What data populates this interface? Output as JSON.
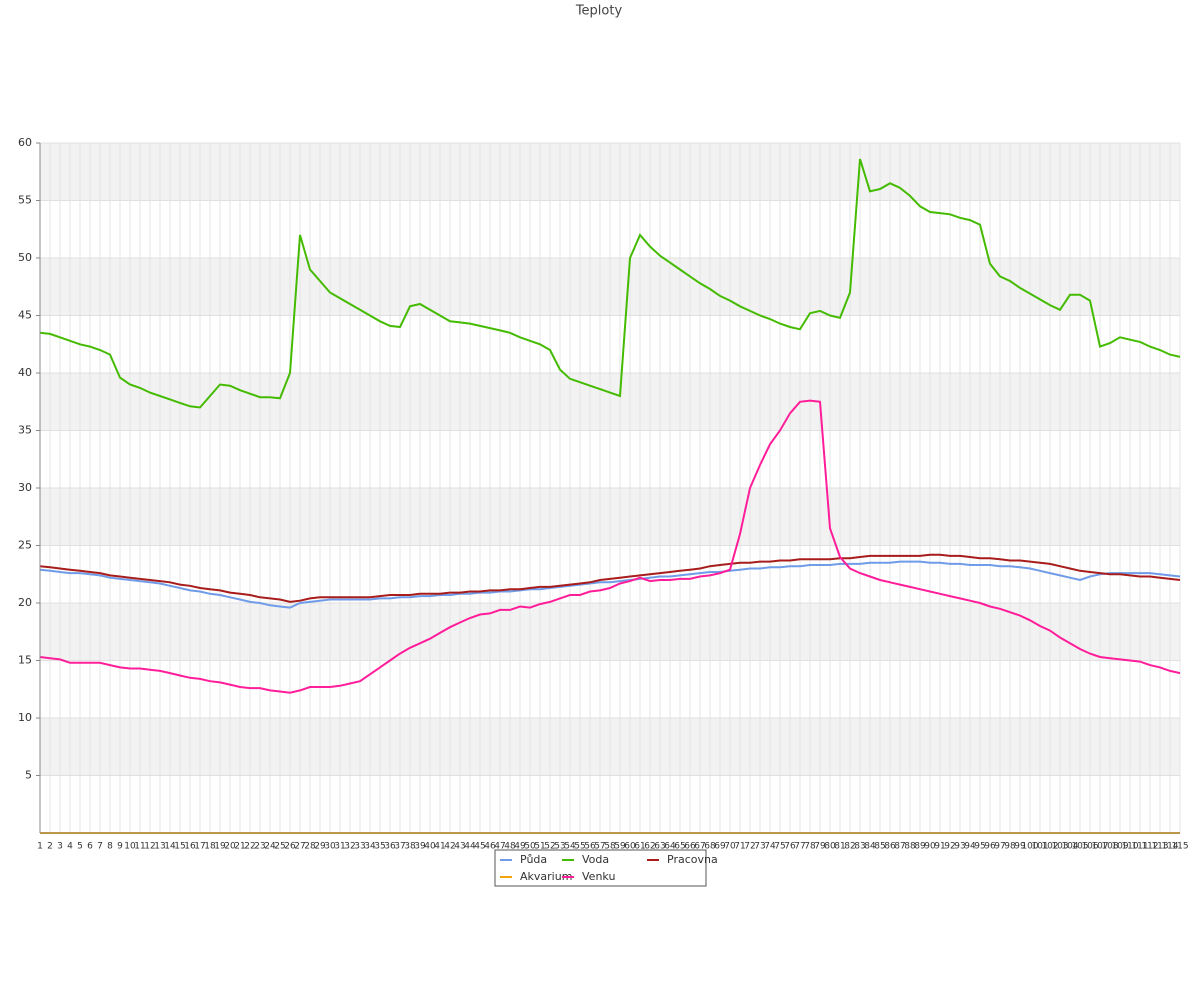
{
  "chart_data": {
    "type": "line",
    "title": "Teploty",
    "categories": [
      "1",
      "2",
      "3",
      "4",
      "5",
      "6",
      "7",
      "8",
      "9",
      "10",
      "11",
      "12",
      "13",
      "14",
      "15",
      "16",
      "17",
      "18",
      "19",
      "20",
      "21",
      "22",
      "23",
      "24",
      "25",
      "26",
      "27",
      "28",
      "29",
      "30",
      "31",
      "32",
      "33",
      "34",
      "35",
      "36",
      "37",
      "38",
      "39",
      "40",
      "41",
      "42",
      "43",
      "44",
      "45",
      "46",
      "47",
      "48",
      "49",
      "50",
      "51",
      "52",
      "53",
      "54",
      "55",
      "56",
      "57",
      "58",
      "59",
      "60",
      "61",
      "62",
      "63",
      "64",
      "65",
      "66",
      "67",
      "68",
      "69",
      "70",
      "71",
      "72",
      "73",
      "74",
      "75",
      "76",
      "77",
      "78",
      "79",
      "80",
      "81",
      "82",
      "83",
      "84",
      "85",
      "86",
      "87",
      "88",
      "89",
      "90",
      "91",
      "92",
      "93",
      "94",
      "95",
      "96",
      "97",
      "98",
      "99",
      "100",
      "101",
      "102",
      "103",
      "104",
      "105",
      "106",
      "107",
      "108",
      "109",
      "110",
      "111",
      "112",
      "113",
      "114",
      "115"
    ],
    "ylim": [
      0,
      60
    ],
    "yticks": [
      5,
      10,
      15,
      20,
      25,
      30,
      35,
      40,
      45,
      50,
      55,
      60
    ],
    "grid": true,
    "series": [
      {
        "name": "Půda",
        "color": "#6f9be8",
        "values": [
          22.9,
          22.8,
          22.7,
          22.6,
          22.6,
          22.5,
          22.4,
          22.2,
          22.1,
          22.0,
          21.9,
          21.8,
          21.7,
          21.5,
          21.3,
          21.1,
          21.0,
          20.8,
          20.7,
          20.5,
          20.3,
          20.1,
          20.0,
          19.8,
          19.7,
          19.6,
          20.0,
          20.1,
          20.2,
          20.3,
          20.3,
          20.3,
          20.3,
          20.3,
          20.4,
          20.4,
          20.5,
          20.5,
          20.6,
          20.6,
          20.7,
          20.7,
          20.8,
          20.8,
          20.9,
          20.9,
          21.0,
          21.0,
          21.1,
          21.2,
          21.2,
          21.3,
          21.4,
          21.5,
          21.6,
          21.7,
          21.8,
          21.8,
          21.9,
          22.0,
          22.1,
          22.2,
          22.3,
          22.3,
          22.4,
          22.5,
          22.6,
          22.7,
          22.7,
          22.8,
          22.9,
          23.0,
          23.0,
          23.1,
          23.1,
          23.2,
          23.2,
          23.3,
          23.3,
          23.3,
          23.4,
          23.4,
          23.4,
          23.5,
          23.5,
          23.5,
          23.6,
          23.6,
          23.6,
          23.5,
          23.5,
          23.4,
          23.4,
          23.3,
          23.3,
          23.3,
          23.2,
          23.2,
          23.1,
          23.0,
          22.8,
          22.6,
          22.4,
          22.2,
          22.0,
          22.3,
          22.5,
          22.6,
          22.6,
          22.6,
          22.6,
          22.6,
          22.5,
          22.4,
          22.3
        ]
      },
      {
        "name": "Voda",
        "color": "#44bb00",
        "values": [
          43.5,
          43.4,
          43.1,
          42.8,
          42.5,
          42.3,
          42.0,
          41.6,
          39.6,
          39.0,
          38.7,
          38.3,
          38.0,
          37.7,
          37.4,
          37.1,
          37.0,
          38.0,
          39.0,
          38.9,
          38.5,
          38.2,
          37.9,
          37.9,
          37.8,
          40.0,
          52.0,
          49.0,
          48.0,
          47.0,
          46.5,
          46.0,
          45.5,
          45.0,
          44.5,
          44.1,
          44.0,
          45.8,
          46.0,
          45.5,
          45.0,
          44.5,
          44.4,
          44.3,
          44.1,
          43.9,
          43.7,
          43.5,
          43.1,
          42.8,
          42.5,
          42.0,
          40.3,
          39.5,
          39.2,
          38.9,
          38.6,
          38.3,
          38.0,
          50.0,
          52.0,
          51.0,
          50.2,
          49.6,
          49.0,
          48.4,
          47.8,
          47.3,
          46.7,
          46.3,
          45.8,
          45.4,
          45.0,
          44.7,
          44.3,
          44.0,
          43.8,
          45.2,
          45.4,
          45.0,
          44.8,
          47.0,
          58.6,
          55.8,
          56.0,
          56.5,
          56.1,
          55.4,
          54.5,
          54.0,
          53.9,
          53.8,
          53.5,
          53.3,
          52.9,
          49.5,
          48.4,
          48.0,
          47.4,
          46.9,
          46.4,
          45.9,
          45.5,
          46.8,
          46.8,
          46.3,
          42.3,
          42.6,
          43.1,
          42.9,
          42.7,
          42.3,
          42.0,
          41.6,
          41.4
        ]
      },
      {
        "name": "Pracovna",
        "color": "#a81c1c",
        "values": [
          23.2,
          23.1,
          23.0,
          22.9,
          22.8,
          22.7,
          22.6,
          22.4,
          22.3,
          22.2,
          22.1,
          22.0,
          21.9,
          21.8,
          21.6,
          21.5,
          21.3,
          21.2,
          21.1,
          20.9,
          20.8,
          20.7,
          20.5,
          20.4,
          20.3,
          20.1,
          20.2,
          20.4,
          20.5,
          20.5,
          20.5,
          20.5,
          20.5,
          20.5,
          20.6,
          20.7,
          20.7,
          20.7,
          20.8,
          20.8,
          20.8,
          20.9,
          20.9,
          21.0,
          21.0,
          21.1,
          21.1,
          21.2,
          21.2,
          21.3,
          21.4,
          21.4,
          21.5,
          21.6,
          21.7,
          21.8,
          22.0,
          22.1,
          22.2,
          22.3,
          22.4,
          22.5,
          22.6,
          22.7,
          22.8,
          22.9,
          23.0,
          23.2,
          23.3,
          23.4,
          23.5,
          23.5,
          23.6,
          23.6,
          23.7,
          23.7,
          23.8,
          23.8,
          23.8,
          23.8,
          23.9,
          23.9,
          24.0,
          24.1,
          24.1,
          24.1,
          24.1,
          24.1,
          24.1,
          24.2,
          24.2,
          24.1,
          24.1,
          24.0,
          23.9,
          23.9,
          23.8,
          23.7,
          23.7,
          23.6,
          23.5,
          23.4,
          23.2,
          23.0,
          22.8,
          22.7,
          22.6,
          22.5,
          22.5,
          22.4,
          22.3,
          22.3,
          22.2,
          22.1,
          22.0
        ]
      },
      {
        "name": "Akvarium",
        "color": "#f0a30a",
        "values": [
          0,
          0,
          0,
          0,
          0,
          0,
          0,
          0,
          0,
          0,
          0,
          0,
          0,
          0,
          0,
          0,
          0,
          0,
          0,
          0,
          0,
          0,
          0,
          0,
          0,
          0,
          0,
          0,
          0,
          0,
          0,
          0,
          0,
          0,
          0,
          0,
          0,
          0,
          0,
          0,
          0,
          0,
          0,
          0,
          0,
          0,
          0,
          0,
          0,
          0,
          0,
          0,
          0,
          0,
          0,
          0,
          0,
          0,
          0,
          0,
          0,
          0,
          0,
          0,
          0,
          0,
          0,
          0,
          0,
          0,
          0,
          0,
          0,
          0,
          0,
          0,
          0,
          0,
          0,
          0,
          0,
          0,
          0,
          0,
          0,
          0,
          0,
          0,
          0,
          0,
          0,
          0,
          0,
          0,
          0,
          0,
          0,
          0,
          0,
          0,
          0,
          0,
          0,
          0,
          0,
          0,
          0,
          0,
          0,
          0,
          0,
          0,
          0,
          0,
          0
        ]
      },
      {
        "name": "Venku",
        "color": "#ff1d9a",
        "values": [
          15.3,
          15.2,
          15.1,
          14.8,
          14.8,
          14.8,
          14.8,
          14.6,
          14.4,
          14.3,
          14.3,
          14.2,
          14.1,
          13.9,
          13.7,
          13.5,
          13.4,
          13.2,
          13.1,
          12.9,
          12.7,
          12.6,
          12.6,
          12.4,
          12.3,
          12.2,
          12.4,
          12.7,
          12.7,
          12.7,
          12.8,
          13.0,
          13.2,
          13.8,
          14.4,
          15.0,
          15.6,
          16.1,
          16.5,
          16.9,
          17.4,
          17.9,
          18.3,
          18.7,
          19.0,
          19.1,
          19.4,
          19.4,
          19.7,
          19.6,
          19.9,
          20.1,
          20.4,
          20.7,
          20.7,
          21.0,
          21.1,
          21.3,
          21.7,
          21.9,
          22.2,
          21.9,
          22.0,
          22.0,
          22.1,
          22.1,
          22.3,
          22.4,
          22.6,
          22.9,
          26.0,
          30.0,
          32.0,
          33.8,
          35.0,
          36.5,
          37.5,
          37.6,
          37.5,
          26.5,
          24.0,
          23.0,
          22.6,
          22.3,
          22.0,
          21.8,
          21.6,
          21.4,
          21.2,
          21.0,
          20.8,
          20.6,
          20.4,
          20.2,
          20.0,
          19.7,
          19.5,
          19.2,
          18.9,
          18.5,
          18.0,
          17.6,
          17.0,
          16.5,
          16.0,
          15.6,
          15.3,
          15.2,
          15.1,
          15.0,
          14.9,
          14.6,
          14.4,
          14.1,
          13.9
        ]
      }
    ]
  }
}
